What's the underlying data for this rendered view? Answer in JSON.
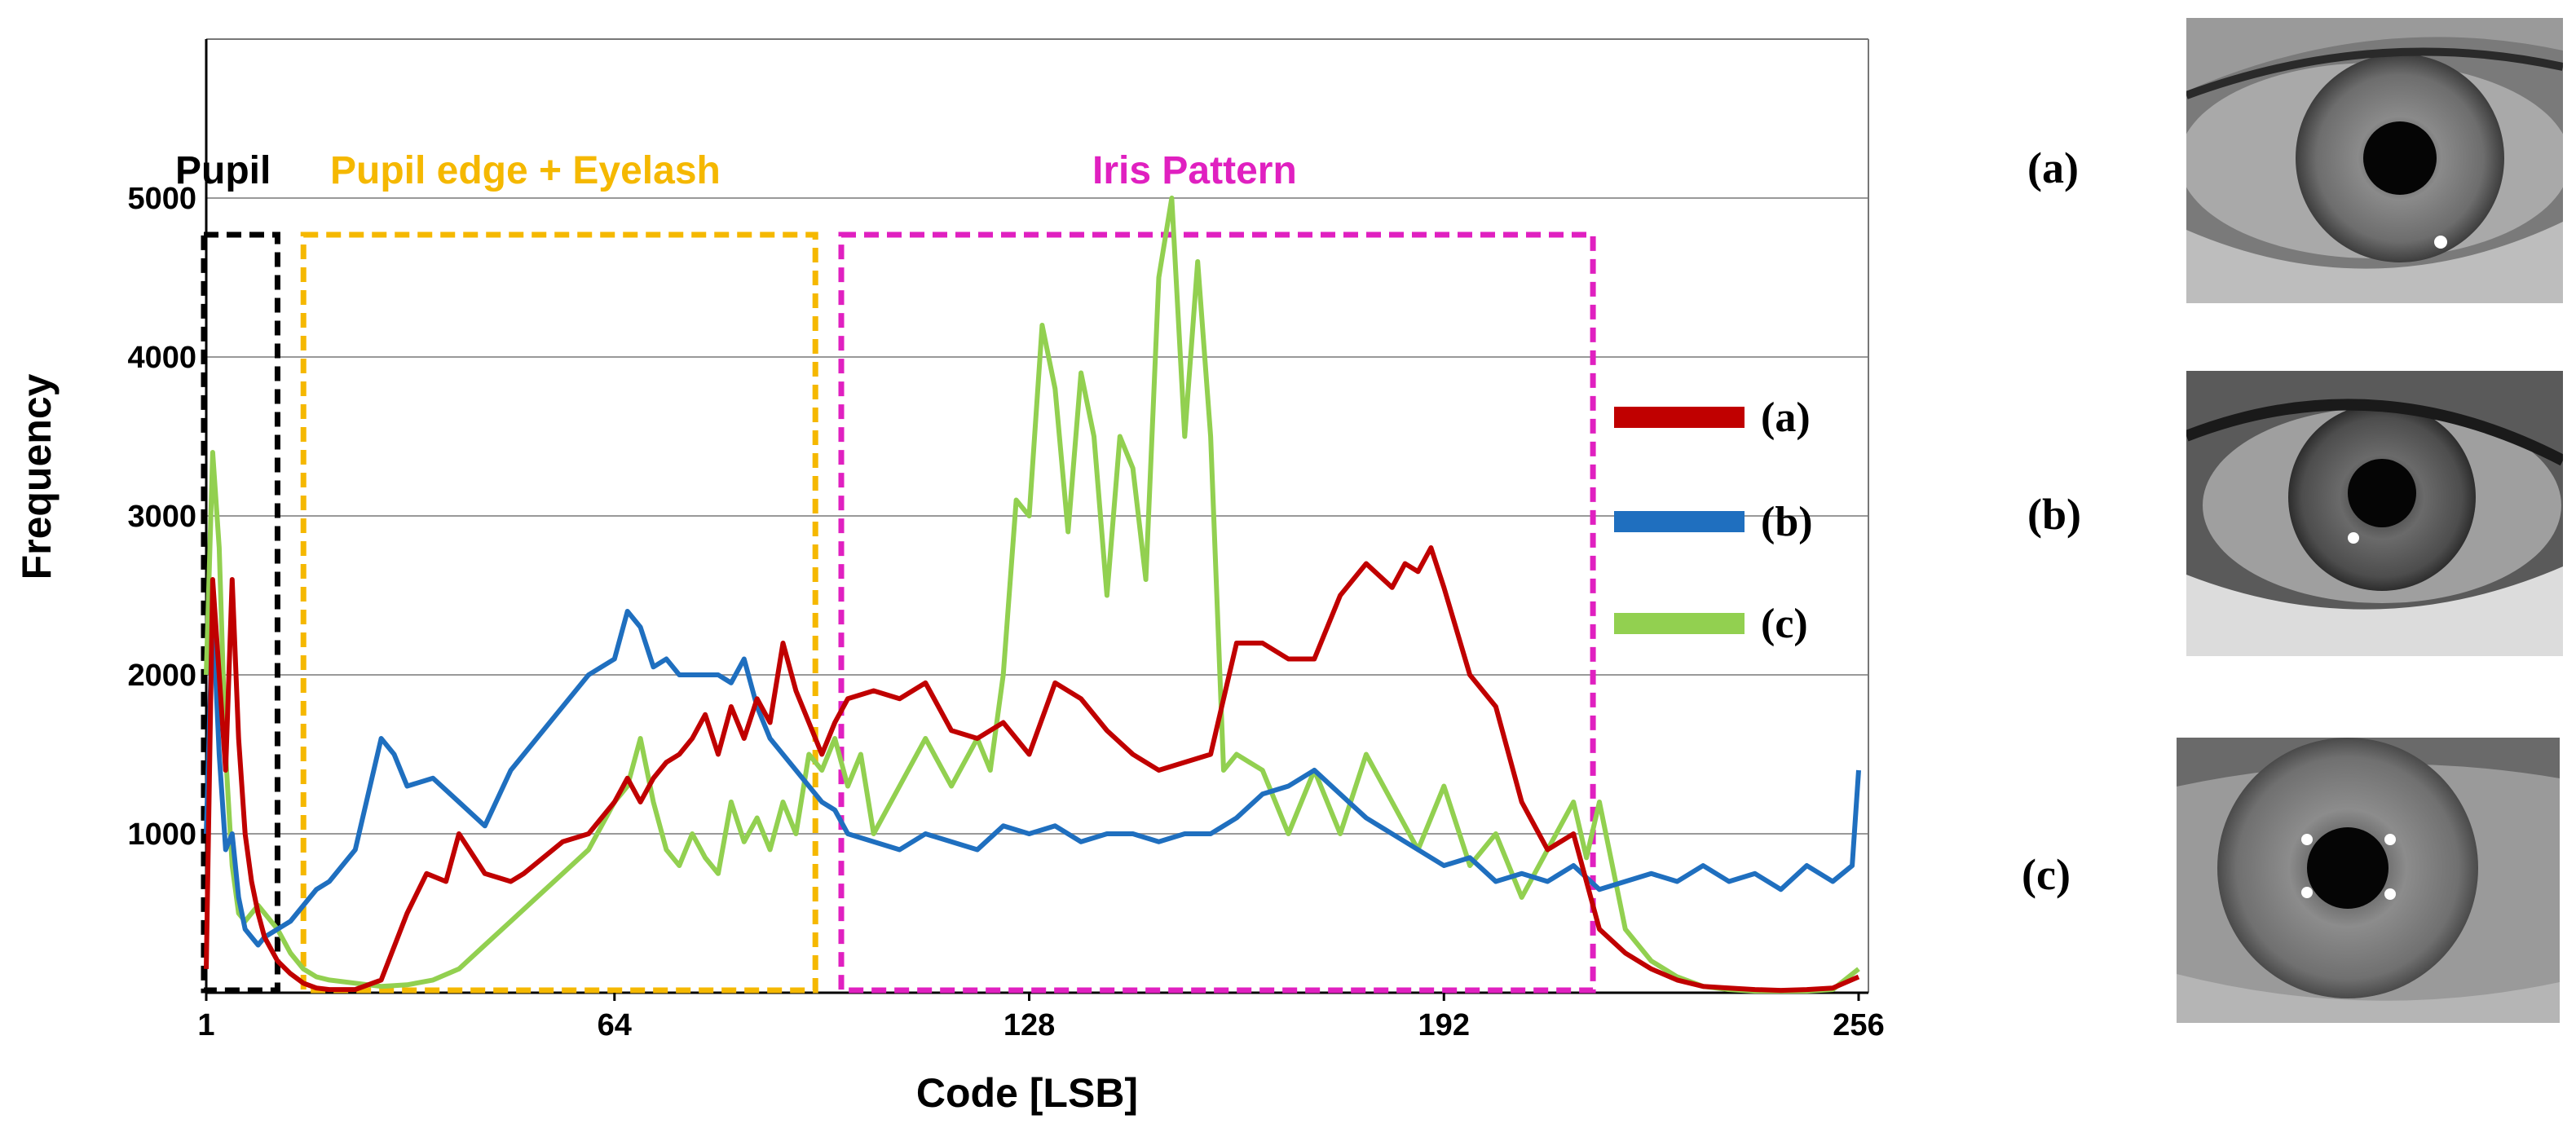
{
  "chart_data": {
    "type": "line",
    "title": "",
    "xlabel": "Code [LSB]",
    "ylabel": "Frequency",
    "xlim": [
      1,
      256
    ],
    "ylim": [
      0,
      6000
    ],
    "x_ticks": [
      1,
      64,
      128,
      192,
      256
    ],
    "y_ticks": [
      1000,
      2000,
      3000,
      4000,
      5000
    ],
    "grid": "horizontal",
    "legend_position": "right",
    "regions": [
      {
        "label": "Pupil",
        "x_range": [
          1,
          12
        ],
        "color": "#000000"
      },
      {
        "label": "Pupil edge + Eyelash",
        "x_range": [
          16,
          95
        ],
        "color": "#f5b800"
      },
      {
        "label": "Iris Pattern",
        "x_range": [
          99,
          215
        ],
        "color": "#e020c0"
      }
    ],
    "series": [
      {
        "name": "(a)",
        "color": "#c00000",
        "x": [
          1,
          2,
          3,
          4,
          5,
          6,
          7,
          8,
          9,
          10,
          12,
          14,
          16,
          18,
          20,
          24,
          28,
          32,
          35,
          38,
          40,
          44,
          48,
          50,
          56,
          60,
          64,
          66,
          68,
          70,
          72,
          74,
          76,
          78,
          80,
          82,
          84,
          86,
          88,
          90,
          92,
          94,
          96,
          98,
          100,
          104,
          108,
          112,
          116,
          120,
          124,
          128,
          132,
          136,
          140,
          144,
          148,
          152,
          156,
          160,
          164,
          168,
          172,
          176,
          180,
          184,
          186,
          188,
          190,
          192,
          196,
          200,
          204,
          208,
          212,
          216,
          220,
          224,
          228,
          232,
          236,
          240,
          244,
          248,
          252,
          256
        ],
        "y": [
          150,
          2600,
          2000,
          1400,
          2600,
          1600,
          1000,
          700,
          500,
          350,
          200,
          120,
          60,
          30,
          20,
          20,
          80,
          500,
          750,
          700,
          1000,
          750,
          700,
          750,
          950,
          1000,
          1200,
          1350,
          1200,
          1350,
          1450,
          1500,
          1600,
          1750,
          1500,
          1800,
          1600,
          1850,
          1700,
          2200,
          1900,
          1700,
          1500,
          1700,
          1850,
          1900,
          1850,
          1950,
          1650,
          1600,
          1700,
          1500,
          1950,
          1850,
          1650,
          1500,
          1400,
          1450,
          1500,
          2200,
          2200,
          2100,
          2100,
          2500,
          2700,
          2550,
          2700,
          2650,
          2800,
          2550,
          2000,
          1800,
          1200,
          900,
          1000,
          400,
          250,
          150,
          80,
          40,
          30,
          20,
          15,
          20,
          30,
          100
        ]
      },
      {
        "name": "(b)",
        "color": "#1f6fbf",
        "x": [
          1,
          2,
          3,
          4,
          5,
          6,
          7,
          8,
          9,
          10,
          12,
          14,
          16,
          18,
          20,
          24,
          28,
          30,
          32,
          36,
          40,
          44,
          48,
          52,
          56,
          60,
          64,
          66,
          68,
          70,
          72,
          74,
          76,
          78,
          80,
          82,
          84,
          86,
          88,
          90,
          92,
          94,
          96,
          98,
          100,
          104,
          108,
          112,
          116,
          120,
          124,
          128,
          132,
          136,
          140,
          144,
          148,
          152,
          156,
          160,
          164,
          168,
          172,
          176,
          180,
          184,
          188,
          192,
          196,
          200,
          204,
          208,
          212,
          216,
          220,
          224,
          228,
          232,
          236,
          240,
          244,
          248,
          252,
          255,
          256
        ],
        "y": [
          1000,
          2400,
          1500,
          900,
          1000,
          600,
          400,
          350,
          300,
          350,
          400,
          450,
          550,
          650,
          700,
          900,
          1600,
          1500,
          1300,
          1350,
          1200,
          1050,
          1400,
          1600,
          1800,
          2000,
          2100,
          2400,
          2300,
          2050,
          2100,
          2000,
          2000,
          2000,
          2000,
          1950,
          2100,
          1800,
          1600,
          1500,
          1400,
          1300,
          1200,
          1150,
          1000,
          950,
          900,
          1000,
          950,
          900,
          1050,
          1000,
          1050,
          950,
          1000,
          1000,
          950,
          1000,
          1000,
          1100,
          1250,
          1300,
          1400,
          1250,
          1100,
          1000,
          900,
          800,
          850,
          700,
          750,
          700,
          800,
          650,
          700,
          750,
          700,
          800,
          700,
          750,
          650,
          800,
          700,
          800,
          1400
        ]
      },
      {
        "name": "(c)",
        "color": "#92d050",
        "x": [
          1,
          2,
          3,
          4,
          5,
          6,
          7,
          8,
          9,
          10,
          12,
          14,
          16,
          18,
          20,
          24,
          28,
          32,
          36,
          40,
          44,
          48,
          52,
          56,
          60,
          64,
          66,
          68,
          70,
          72,
          74,
          76,
          78,
          80,
          82,
          84,
          86,
          88,
          90,
          92,
          94,
          96,
          98,
          100,
          102,
          104,
          108,
          112,
          116,
          120,
          122,
          124,
          126,
          128,
          130,
          132,
          134,
          136,
          138,
          140,
          142,
          144,
          146,
          148,
          150,
          152,
          154,
          156,
          158,
          160,
          162,
          164,
          168,
          172,
          176,
          180,
          184,
          188,
          192,
          196,
          200,
          204,
          208,
          212,
          214,
          216,
          220,
          224,
          228,
          232,
          236,
          240,
          244,
          248,
          252,
          256
        ],
        "y": [
          2000,
          3400,
          2800,
          1500,
          800,
          500,
          450,
          500,
          550,
          500,
          400,
          250,
          150,
          100,
          80,
          60,
          40,
          50,
          80,
          150,
          300,
          450,
          600,
          750,
          900,
          1200,
          1300,
          1600,
          1200,
          900,
          800,
          1000,
          850,
          750,
          1200,
          950,
          1100,
          900,
          1200,
          1000,
          1500,
          1400,
          1600,
          1300,
          1500,
          1000,
          1300,
          1600,
          1300,
          1600,
          1400,
          2000,
          3100,
          3000,
          4200,
          3800,
          2900,
          3900,
          3500,
          2500,
          3500,
          3300,
          2600,
          4500,
          5000,
          3500,
          4600,
          3500,
          1400,
          1500,
          1450,
          1400,
          1000,
          1400,
          1000,
          1500,
          1200,
          900,
          1300,
          800,
          1000,
          600,
          900,
          1200,
          850,
          1200,
          400,
          200,
          100,
          40,
          20,
          10,
          10,
          10,
          20,
          150
        ]
      }
    ]
  },
  "photo_labels": [
    "(a)",
    "(b)",
    "(c)"
  ],
  "colors": {
    "grid": "#999999",
    "frame": "#000000"
  }
}
